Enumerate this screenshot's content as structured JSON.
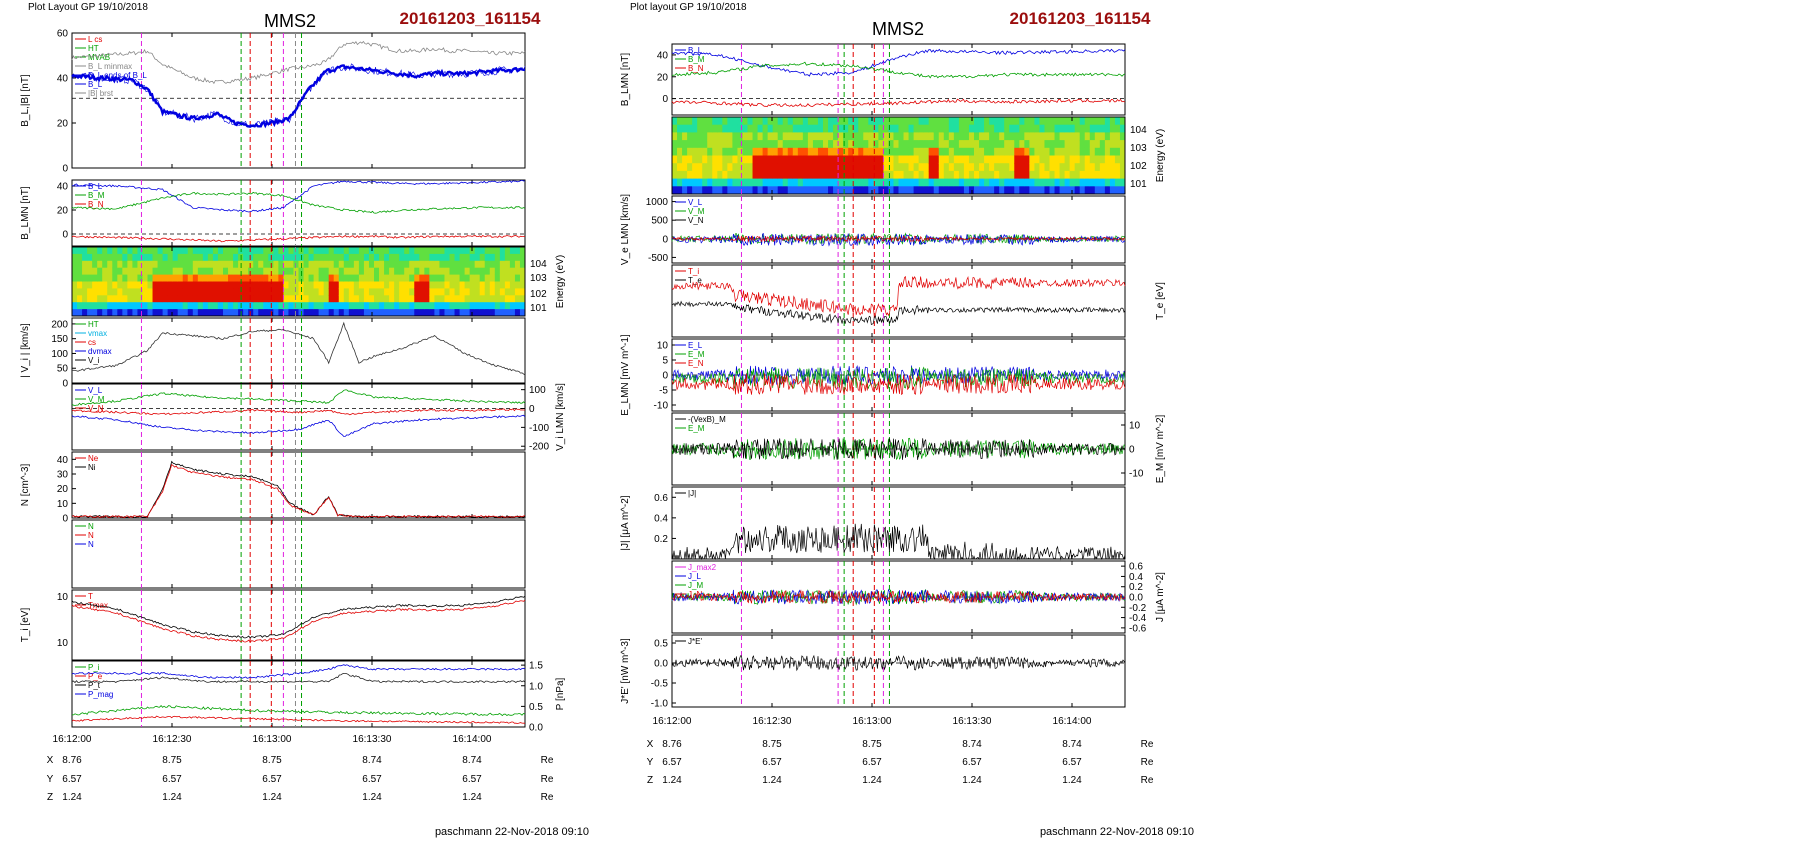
{
  "pages": [
    {
      "layout_label": "Plot Layout GP 19/10/2018",
      "spacecraft": "MMS2",
      "event_id": "20161203_161154",
      "footer": "paschmann 22-Nov-2018 09:10",
      "time_ticks": [
        "16:12:00",
        "16:12:30",
        "16:13:00",
        "16:13:30",
        "16:14:00"
      ],
      "ephemeris": [
        {
          "label": "X",
          "values": [
            "8.76",
            "8.75",
            "8.75",
            "8.74",
            "8.74"
          ],
          "unit": "Re"
        },
        {
          "label": "Y",
          "values": [
            "6.57",
            "6.57",
            "6.57",
            "6.57",
            "6.57"
          ],
          "unit": "Re"
        },
        {
          "label": "Z",
          "values": [
            "1.24",
            "1.24",
            "1.24",
            "1.24",
            "1.24"
          ],
          "unit": "Re"
        }
      ]
    },
    {
      "layout_label": "Plot layout GP 19/10/2018",
      "spacecraft": "MMS2",
      "event_id": "20161203_161154",
      "footer": "paschmann 22-Nov-2018 09:10",
      "time_ticks": [
        "16:12:00",
        "16:12:30",
        "16:13:00",
        "16:13:30",
        "16:14:00"
      ],
      "ephemeris": [
        {
          "label": "X",
          "values": [
            "8.76",
            "8.75",
            "8.75",
            "8.74",
            "8.74"
          ],
          "unit": "Re"
        },
        {
          "label": "Y",
          "values": [
            "6.57",
            "6.57",
            "6.57",
            "6.57",
            "6.57"
          ],
          "unit": "Re"
        },
        {
          "label": "Z",
          "values": [
            "1.24",
            "1.24",
            "1.24",
            "1.24",
            "1.24"
          ],
          "unit": "Re"
        }
      ]
    }
  ],
  "colors": {
    "magenta": "#e020e0",
    "green": "#00a000",
    "red": "#e00000",
    "blue": "#0000e0",
    "black": "#000000",
    "gray": "#888888",
    "brightgreen": "#30d030",
    "dark_red": "#9b0d0d",
    "cyan": "#00b0e0"
  },
  "chart_data": [
    {
      "type": "line",
      "page": "left",
      "panel": 1,
      "ylabel": "B_L,|B| [nT]",
      "ylim": [
        0,
        60
      ],
      "yticks": [
        "0",
        "20",
        "40",
        "60"
      ],
      "legend": [
        "L cs",
        "HT",
        "MVAB",
        "B_L minmax",
        "B_L ends of B_L",
        "B_L",
        "|B| brst"
      ],
      "x": [
        0,
        10,
        20,
        25,
        30,
        40,
        48,
        54,
        60,
        66,
        72,
        78,
        84,
        90,
        96,
        102,
        108,
        114,
        120,
        126,
        132,
        138,
        150
      ],
      "series": [
        {
          "name": "|B|",
          "values": [
            49,
            50,
            51,
            52,
            46,
            40,
            38,
            39,
            40,
            42,
            44,
            45,
            47,
            55,
            56,
            54,
            52,
            52,
            53,
            52,
            52,
            51,
            51
          ]
        },
        {
          "name": "B_L",
          "values": [
            41,
            40,
            39,
            35,
            25,
            22,
            24,
            20,
            19,
            20,
            22,
            34,
            43,
            45,
            44,
            43,
            42,
            41,
            42,
            42,
            42,
            43,
            44
          ]
        }
      ]
    },
    {
      "type": "line",
      "page": "left",
      "panel": 2,
      "ylabel": "B_LMN [nT]",
      "ylim": [
        -10,
        45
      ],
      "yticks": [
        "0",
        "20",
        "40"
      ],
      "legend": [
        "B_L",
        "B_M",
        "B_N"
      ],
      "x": [
        0,
        15,
        30,
        40,
        50,
        60,
        70,
        80,
        90,
        100,
        110,
        120,
        135,
        150
      ],
      "series": [
        {
          "name": "B_L",
          "values": [
            41,
            40,
            37,
            22,
            20,
            19,
            22,
            40,
            44,
            43,
            42,
            42,
            43,
            44
          ]
        },
        {
          "name": "B_M",
          "values": [
            22,
            21,
            30,
            34,
            33,
            34,
            32,
            24,
            20,
            18,
            20,
            21,
            22,
            22
          ]
        },
        {
          "name": "B_N",
          "values": [
            -2,
            -3,
            -4,
            -5,
            -6,
            -5,
            -4,
            -3,
            -2,
            -2,
            -3,
            -2,
            -2,
            -2
          ]
        }
      ]
    },
    {
      "type": "heatmap",
      "page": "left",
      "panel": 3,
      "ylabel": "Energy (eV)",
      "yticks": [
        "10^1",
        "10^2",
        "10^3",
        "10^4"
      ]
    },
    {
      "type": "line",
      "page": "left",
      "panel": 4,
      "ylabel": "| V_i | [km/s]",
      "ylim": [
        0,
        220
      ],
      "yticks": [
        "0",
        "50",
        "100",
        "150",
        "200"
      ],
      "legend": [
        "HT",
        "vmax",
        "cs",
        "dvmax",
        "V_i"
      ],
      "x": [
        0,
        15,
        25,
        30,
        40,
        50,
        60,
        70,
        80,
        85,
        90,
        95,
        100,
        110,
        120,
        130,
        140,
        150
      ],
      "series": [
        {
          "name": "V_i",
          "values": [
            40,
            60,
            110,
            170,
            160,
            150,
            175,
            180,
            150,
            70,
            200,
            70,
            90,
            120,
            160,
            100,
            60,
            30
          ]
        }
      ]
    },
    {
      "type": "line",
      "page": "left",
      "panel": 5,
      "ylabel": "V_i LMN [km/s]",
      "ylim": [
        -220,
        130
      ],
      "yticks": [
        "100",
        "0",
        "-100",
        "-200"
      ],
      "legend": [
        "V_L",
        "V_M",
        "V_N"
      ],
      "x": [
        0,
        15,
        30,
        45,
        60,
        75,
        85,
        90,
        100,
        115,
        130,
        150
      ],
      "series": [
        {
          "name": "V_L",
          "values": [
            -40,
            -60,
            -100,
            -120,
            -130,
            -110,
            -60,
            -150,
            -80,
            -60,
            -50,
            -40
          ]
        },
        {
          "name": "V_M",
          "values": [
            20,
            40,
            80,
            60,
            50,
            40,
            30,
            100,
            60,
            50,
            40,
            30
          ]
        },
        {
          "name": "V_N",
          "values": [
            -10,
            -20,
            -30,
            -20,
            -10,
            -20,
            -10,
            -30,
            -20,
            -10,
            -10,
            -5
          ]
        }
      ]
    },
    {
      "type": "line",
      "page": "left",
      "panel": 6,
      "ylabel": "N [cm^-3]",
      "ylim": [
        0,
        45
      ],
      "yticks": [
        "0",
        "10",
        "20",
        "30",
        "40"
      ],
      "legend": [
        "Ne",
        "Ni"
      ],
      "x": [
        0,
        25,
        30,
        33,
        40,
        50,
        60,
        68,
        72,
        80,
        85,
        88,
        95,
        110,
        150
      ],
      "series": [
        {
          "name": "Ni",
          "values": [
            1,
            1,
            20,
            38,
            33,
            30,
            28,
            22,
            10,
            2,
            15,
            2,
            1,
            1,
            1
          ]
        },
        {
          "name": "Ne",
          "values": [
            1,
            1,
            18,
            36,
            31,
            28,
            26,
            20,
            9,
            2,
            14,
            2,
            1,
            1,
            1
          ]
        }
      ]
    },
    {
      "type": "line",
      "page": "left",
      "panel": 7,
      "legend": [
        "N",
        "N",
        "N"
      ]
    },
    {
      "type": "line",
      "page": "left",
      "panel": 8,
      "ylabel": "T_i [eV]",
      "yticks": [
        "10^2",
        "10^3"
      ],
      "legend": [
        "T",
        "Tmax"
      ],
      "x": [
        0,
        15,
        30,
        40,
        50,
        60,
        70,
        80,
        90,
        100,
        110,
        120,
        130,
        140,
        150
      ],
      "series": [
        {
          "name": "T",
          "values": [
            700,
            500,
            250,
            180,
            150,
            140,
            160,
            350,
            500,
            550,
            600,
            580,
            600,
            700,
            900
          ]
        }
      ]
    },
    {
      "type": "line",
      "page": "left",
      "panel": 9,
      "ylabel": "P [nPa]",
      "ylim": [
        0,
        1.6
      ],
      "yticks": [
        "0.0",
        "0.5",
        "1.0",
        "1.5"
      ],
      "legend": [
        "P_i",
        "P_e",
        "P_t",
        "P_mag"
      ],
      "x": [
        0,
        15,
        30,
        45,
        60,
        75,
        85,
        90,
        100,
        120,
        150
      ],
      "series": [
        {
          "name": "P_t",
          "values": [
            1.1,
            1.1,
            1.2,
            1.1,
            1.1,
            1.1,
            1.1,
            1.3,
            1.1,
            1.1,
            1.1
          ]
        },
        {
          "name": "P_mag",
          "values": [
            1.3,
            1.3,
            1.3,
            1.2,
            1.2,
            1.3,
            1.4,
            1.5,
            1.4,
            1.4,
            1.4
          ]
        }
      ]
    },
    {
      "type": "line",
      "page": "right",
      "panel": 1,
      "ylabel": "B_LMN [nT]",
      "ylim": [
        -15,
        50
      ],
      "yticks": [
        "0",
        "20",
        "40"
      ],
      "legend": [
        "B_L",
        "B_M",
        "B_N"
      ],
      "x": [
        0,
        15,
        30,
        45,
        60,
        75,
        85,
        95,
        110,
        130,
        150
      ],
      "series": [
        {
          "name": "B_L",
          "values": [
            42,
            40,
            30,
            22,
            24,
            38,
            44,
            43,
            42,
            43,
            44
          ]
        },
        {
          "name": "B_M",
          "values": [
            22,
            24,
            30,
            32,
            30,
            24,
            20,
            20,
            22,
            22,
            22
          ]
        },
        {
          "name": "B_N",
          "values": [
            -3,
            -4,
            -6,
            -6,
            -5,
            -4,
            -3,
            -2,
            -3,
            -2,
            -2
          ]
        }
      ]
    },
    {
      "type": "heatmap",
      "page": "right",
      "panel": 2,
      "ylabel": "Energy (eV)",
      "yticks": [
        "10^1",
        "10^2",
        "10^3",
        "10^4"
      ]
    },
    {
      "type": "line",
      "page": "right",
      "panel": 3,
      "ylabel": "V_e LMN [km/s]",
      "ylim": [
        -650,
        1150
      ],
      "yticks": [
        "1000",
        "500",
        "0",
        "-500"
      ],
      "legend": [
        "V_L",
        "V_M",
        "V_N"
      ]
    },
    {
      "type": "line",
      "page": "right",
      "panel": 4,
      "ylabel": "T_e [eV]",
      "legend": [
        "T_i",
        "T_e"
      ]
    },
    {
      "type": "line",
      "page": "right",
      "panel": 5,
      "ylabel": "E_LMN [mV m^-1]",
      "ylim": [
        -12,
        12
      ],
      "yticks": [
        "10",
        "5",
        "0",
        "-5",
        "-10"
      ],
      "legend": [
        "E_L",
        "E_M",
        "E_N"
      ]
    },
    {
      "type": "line",
      "page": "right",
      "panel": 6,
      "ylabel": "E_M [mV m^-2]",
      "ylim": [
        -15,
        15
      ],
      "yticks": [
        "10",
        "0",
        "-10"
      ],
      "legend": [
        "-(VexB)_M",
        "E_M"
      ]
    },
    {
      "type": "line",
      "page": "right",
      "panel": 7,
      "ylabel": "|J| [μA m^-2]",
      "ylim": [
        0,
        0.7
      ],
      "yticks": [
        "0.6",
        "0.4",
        "0.2"
      ],
      "legend": [
        "|J|"
      ]
    },
    {
      "type": "line",
      "page": "right",
      "panel": 8,
      "ylabel": "J [μA m^-2]",
      "ylim": [
        -0.7,
        0.7
      ],
      "yticks": [
        "0.6",
        "0.4",
        "0.2",
        "0.0",
        "-0.2",
        "-0.4",
        "-0.6"
      ],
      "legend": [
        "J_max2",
        "J_L",
        "J_M",
        "J_N"
      ]
    },
    {
      "type": "line",
      "page": "right",
      "panel": 9,
      "ylabel": "J*E' [nW m^-3]",
      "ylim": [
        -1.1,
        0.7
      ],
      "yticks": [
        "0.5",
        "0.0",
        "-0.5",
        "-1.0"
      ],
      "legend": [
        "J*E'"
      ]
    }
  ]
}
